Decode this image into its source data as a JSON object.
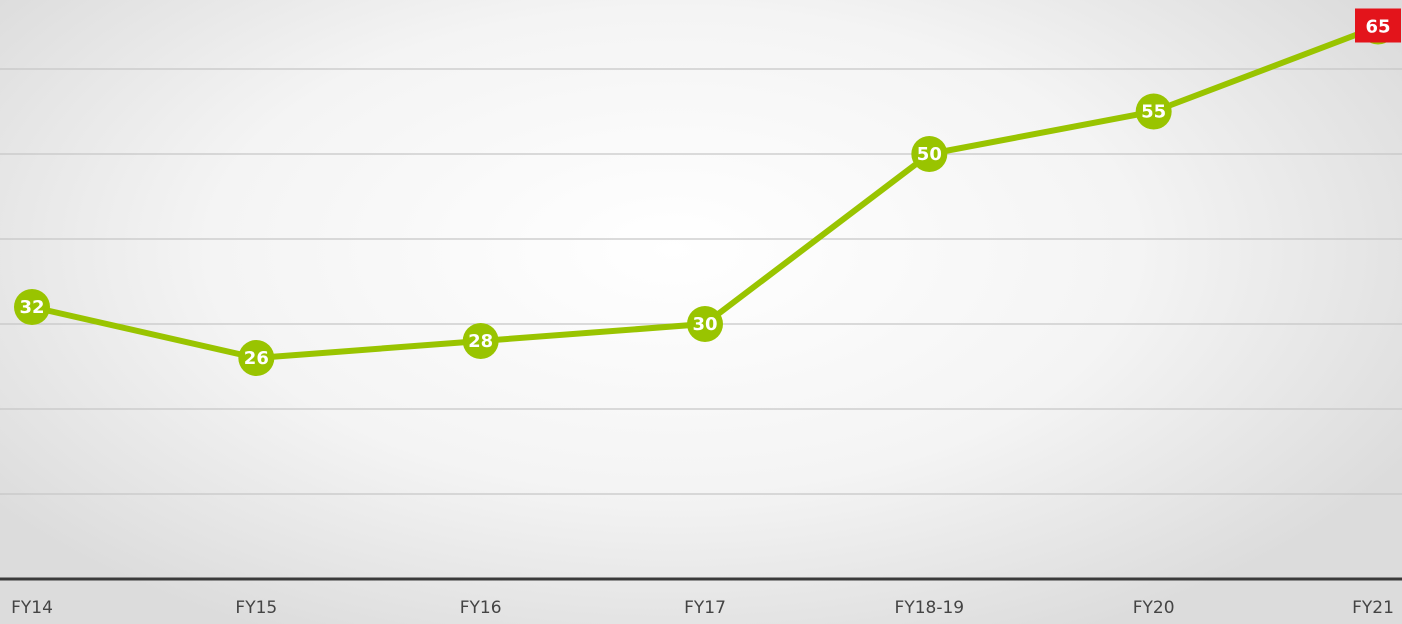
{
  "chart_data": {
    "type": "line",
    "categories": [
      "FY14",
      "FY15",
      "FY16",
      "FY17",
      "FY18-19",
      "FY20",
      "FY21"
    ],
    "values": [
      32,
      26,
      28,
      30,
      50,
      55,
      65
    ],
    "color": "#99c400",
    "label_colors": [
      "#99c400",
      "#99c400",
      "#99c400",
      "#99c400",
      "#99c400",
      "#99c400",
      "#e3141b"
    ],
    "ylim": [
      0,
      68
    ],
    "yticks": [
      10,
      20,
      30,
      40,
      50,
      60
    ],
    "grid": true
  }
}
